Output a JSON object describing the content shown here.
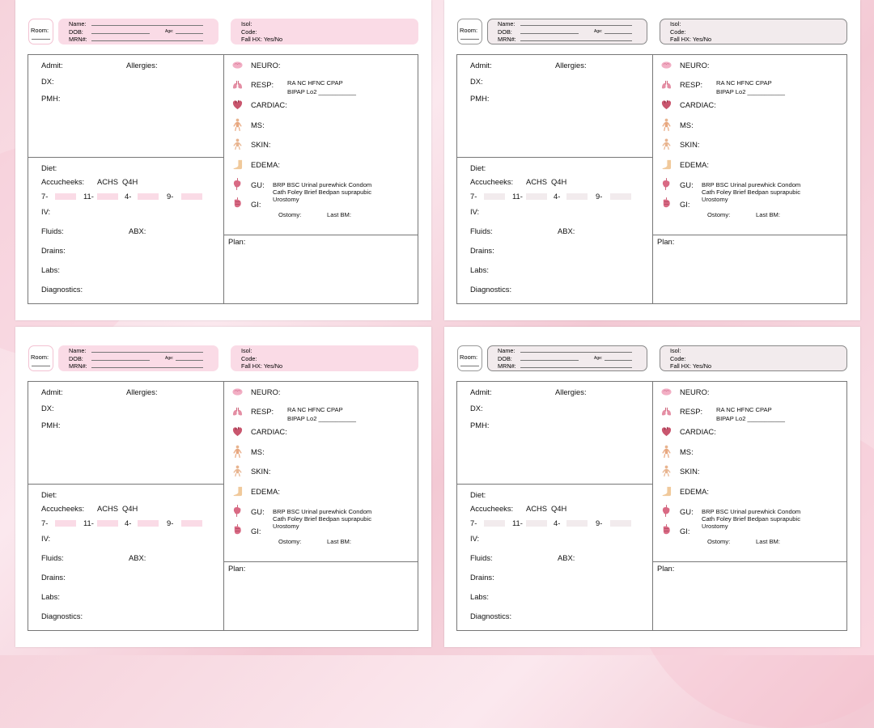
{
  "header": {
    "room_label": "Room:",
    "name_label": "Name:",
    "dob_label": "DOB:",
    "age_label": "Age:",
    "mrn_label": "MRN#:",
    "isol_label": "Isol:",
    "code_label": "Code:",
    "fall_label": "Fall HX: Yes/No"
  },
  "left": {
    "admit": "Admit:",
    "allergies": "Allergies:",
    "dx": "DX:",
    "pmh": "PMH:",
    "diet": "Diet:",
    "accuchecks": "Accucheeks:",
    "achs": "ACHS",
    "q4h": "Q4H",
    "t7": "7-",
    "t11": "11-",
    "t4": "4-",
    "t9": "9-",
    "iv": "IV:",
    "fluids": "Fluids:",
    "abx": "ABX:",
    "drains": "Drains:",
    "labs": "Labs:",
    "diagnostics": "Diagnostics:"
  },
  "right": {
    "neuro": "NEURO:",
    "resp": "RESP:",
    "resp_opt1": "RA     NC      HFNC    CPAP",
    "resp_opt2": "BIPAP        Lo2 ___________",
    "cardiac": "CARDIAC:",
    "ms": "MS:",
    "skin": "SKIN:",
    "edema": "EDEMA:",
    "gu": "GU:",
    "gu_opt1": "BRP  BSC  Urinal purewhick  Condom",
    "gu_opt2": "Cath  Foley  Brief Bedpan  suprapubic",
    "gu_opt3": "Urostomy",
    "gi": "GI:",
    "ostomy": "Ostomy:",
    "last_bm": "Last BM:",
    "plan": "Plan:"
  },
  "colors": {
    "pink_fill": "#fadbe6",
    "grey_fill": "#f2ebed",
    "icon_pink": "#f2aec4",
    "icon_red": "#c9566e",
    "icon_skin": "#e8b48f"
  }
}
